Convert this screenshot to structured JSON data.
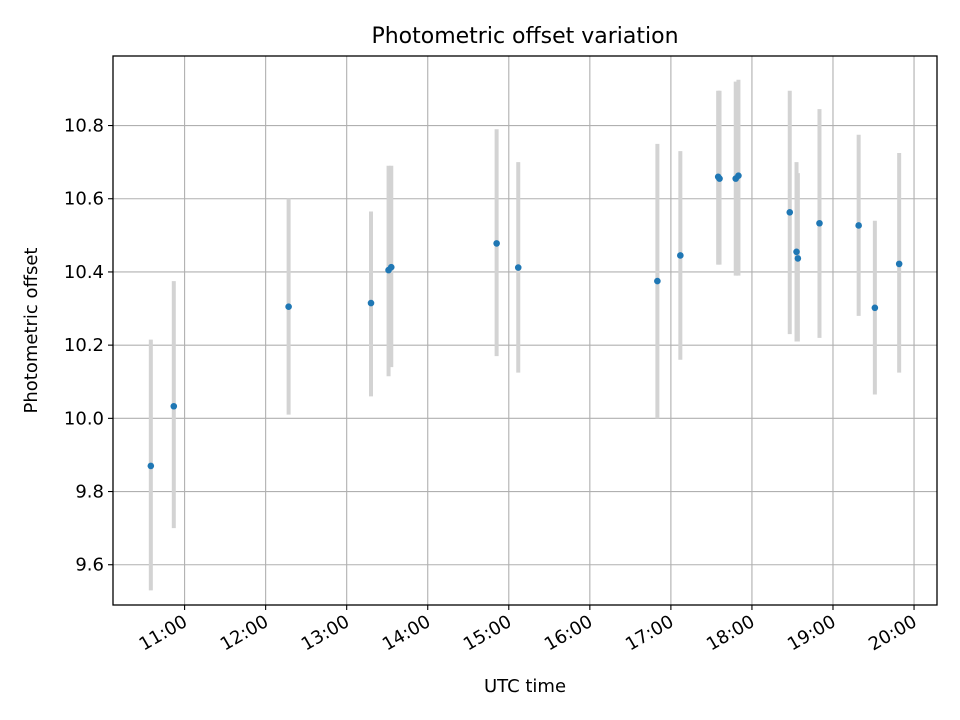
{
  "chart_data": {
    "type": "scatter",
    "title": "Photometric offset variation",
    "xlabel": "UTC time",
    "ylabel": "Photometric offset",
    "xlim": [
      "10:07",
      "20:17"
    ],
    "ylim": [
      9.49,
      10.99
    ],
    "xticks": [
      "11:00",
      "12:00",
      "13:00",
      "14:00",
      "15:00",
      "16:00",
      "17:00",
      "18:00",
      "19:00",
      "20:00"
    ],
    "yticks": [
      9.6,
      9.8,
      10.0,
      10.2,
      10.4,
      10.6,
      10.8
    ],
    "ytick_labels": [
      "9.6",
      "9.8",
      "10.0",
      "10.2",
      "10.4",
      "10.6",
      "10.8"
    ],
    "grid": true,
    "point_color": "#1f77b4",
    "errorbar_color": "#d3d3d3",
    "points": [
      {
        "time": "10:35",
        "y": 9.87,
        "lo": 9.53,
        "hi": 10.215
      },
      {
        "time": "10:52",
        "y": 10.033,
        "lo": 9.7,
        "hi": 10.375
      },
      {
        "time": "12:17",
        "y": 10.305,
        "lo": 10.01,
        "hi": 10.6
      },
      {
        "time": "13:18",
        "y": 10.315,
        "lo": 10.06,
        "hi": 10.565
      },
      {
        "time": "13:31",
        "y": 10.405,
        "lo": 10.115,
        "hi": 10.69
      },
      {
        "time": "13:33",
        "y": 10.413,
        "lo": 10.14,
        "hi": 10.69
      },
      {
        "time": "14:51",
        "y": 10.478,
        "lo": 10.17,
        "hi": 10.79
      },
      {
        "time": "15:07",
        "y": 10.412,
        "lo": 10.125,
        "hi": 10.7
      },
      {
        "time": "16:50",
        "y": 10.375,
        "lo": 10.0,
        "hi": 10.75
      },
      {
        "time": "17:07",
        "y": 10.445,
        "lo": 10.16,
        "hi": 10.73
      },
      {
        "time": "17:35",
        "y": 10.66,
        "lo": 10.42,
        "hi": 10.895
      },
      {
        "time": "17:36",
        "y": 10.655,
        "lo": 10.42,
        "hi": 10.895
      },
      {
        "time": "17:48",
        "y": 10.655,
        "lo": 10.39,
        "hi": 10.92
      },
      {
        "time": "17:50",
        "y": 10.663,
        "lo": 10.39,
        "hi": 10.925
      },
      {
        "time": "18:28",
        "y": 10.563,
        "lo": 10.23,
        "hi": 10.895
      },
      {
        "time": "18:33",
        "y": 10.455,
        "lo": 10.21,
        "hi": 10.7
      },
      {
        "time": "18:34",
        "y": 10.437,
        "lo": 10.21,
        "hi": 10.67
      },
      {
        "time": "18:50",
        "y": 10.533,
        "lo": 10.22,
        "hi": 10.845
      },
      {
        "time": "19:19",
        "y": 10.527,
        "lo": 10.28,
        "hi": 10.775
      },
      {
        "time": "19:31",
        "y": 10.302,
        "lo": 10.065,
        "hi": 10.54
      },
      {
        "time": "19:49",
        "y": 10.422,
        "lo": 10.125,
        "hi": 10.725
      }
    ]
  }
}
